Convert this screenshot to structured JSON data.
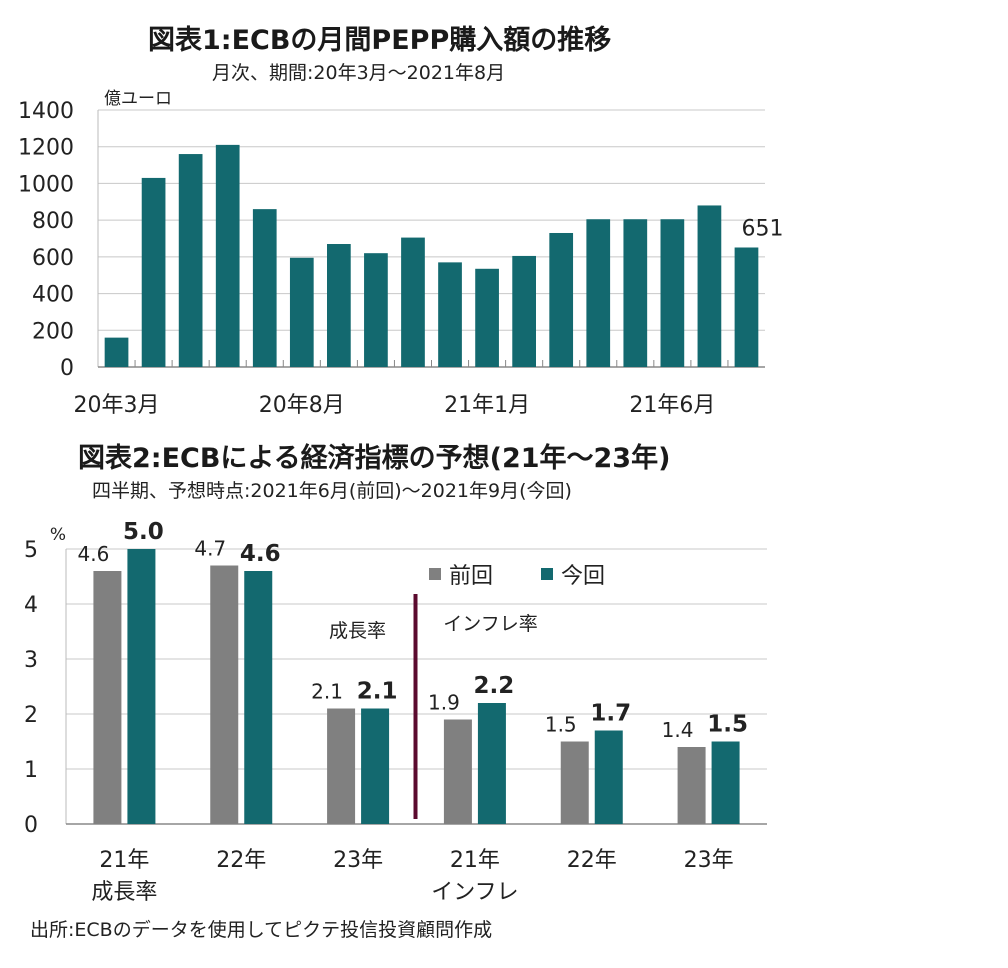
{
  "chart_data": [
    {
      "type": "bar",
      "title": "図表1:ECBの月間PEPP購入額の推移",
      "subtitle": "月次、期間:20年3月～2021年8月",
      "ylabel": "億ユーロ",
      "ylim": [
        0,
        1400
      ],
      "yticks": [
        "0",
        "200",
        "400",
        "600",
        "800",
        "1000",
        "1200",
        "1400"
      ],
      "xtick_labels": [
        "20年3月",
        "20年8月",
        "21年1月",
        "21年6月"
      ],
      "categories": [
        "20年3月",
        "20年4月",
        "20年5月",
        "20年6月",
        "20年7月",
        "20年8月",
        "20年9月",
        "20年10月",
        "20年11月",
        "20年12月",
        "21年1月",
        "21年2月",
        "21年3月",
        "21年4月",
        "21年5月",
        "21年6月",
        "21年7月",
        "21年8月"
      ],
      "values": [
        160,
        1030,
        1160,
        1210,
        860,
        595,
        670,
        620,
        705,
        570,
        535,
        605,
        730,
        805,
        805,
        805,
        880,
        651
      ],
      "data_labels": [
        {
          "index": 17,
          "text": "651"
        }
      ],
      "bar_color": "#13696f",
      "grid": true
    },
    {
      "type": "bar",
      "title": "図表2:ECBによる経済指標の予想(21年～23年)",
      "subtitle": "四半期、予想時点:2021年6月(前回)～2021年9月(今回)",
      "ylabel": "%",
      "ylim": [
        0,
        5
      ],
      "yticks": [
        "0",
        "1",
        "2",
        "3",
        "4",
        "5"
      ],
      "categories": [
        [
          "21年",
          "成長率"
        ],
        [
          "22年"
        ],
        [
          "23年"
        ],
        [
          "21年",
          "インフレ"
        ],
        [
          "22年"
        ],
        [
          "23年"
        ]
      ],
      "series": [
        {
          "name": "前回",
          "color": "#808080",
          "values": [
            4.6,
            4.7,
            2.1,
            1.9,
            1.5,
            1.4
          ],
          "labels": [
            "4.6",
            "4.7",
            "2.1",
            "1.9",
            "1.5",
            "1.4"
          ]
        },
        {
          "name": "今回",
          "color": "#13696f",
          "values": [
            5.0,
            4.6,
            2.1,
            2.2,
            1.7,
            1.5
          ],
          "labels": [
            "5.0",
            "4.6",
            "2.1",
            "2.2",
            "1.7",
            "1.5"
          ]
        }
      ],
      "group_annotations": [
        "成長率",
        "インフレ率"
      ],
      "divider_color": "#5b0a2e",
      "legend_position": "top-right",
      "grid": true
    }
  ],
  "source": "出所:ECBのデータを使用してピクテ投信投資顧問作成"
}
